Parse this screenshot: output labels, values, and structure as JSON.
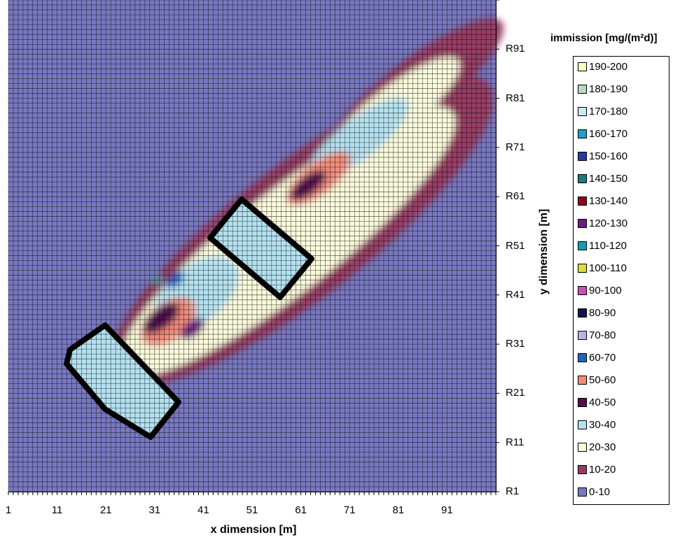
{
  "chart_data": {
    "type": "heatmap",
    "xlabel": "x dimension [m]",
    "ylabel": "y dimension [m]",
    "x_ticks": [
      "1",
      "11",
      "21",
      "31",
      "41",
      "51",
      "61",
      "71",
      "81",
      "91"
    ],
    "y_ticks": [
      "R91",
      "R81",
      "R71",
      "R61",
      "R51",
      "R41",
      "R31",
      "R21",
      "R11",
      "R1"
    ],
    "x_range": [
      1,
      100
    ],
    "y_range": [
      1,
      100
    ],
    "grid": true,
    "legend_title": "immission [mg/(m²d)]",
    "legend_position": "right",
    "legend": [
      {
        "label": "190-200",
        "color": "#ffffc8"
      },
      {
        "label": "180-190",
        "color": "#b4dcbe"
      },
      {
        "label": "170-180",
        "color": "#c8ebf5"
      },
      {
        "label": "160-170",
        "color": "#1ea0c8"
      },
      {
        "label": "150-160",
        "color": "#283ca0"
      },
      {
        "label": "140-150",
        "color": "#1e7878"
      },
      {
        "label": "130-140",
        "color": "#8c0a14"
      },
      {
        "label": "120-130",
        "color": "#6e1e82"
      },
      {
        "label": "110-120",
        "color": "#14a0b4"
      },
      {
        "label": "100-110",
        "color": "#dcdc3c"
      },
      {
        "label": "90-100",
        "color": "#c850b4"
      },
      {
        "label": "80-90",
        "color": "#141450"
      },
      {
        "label": "70-80",
        "color": "#b4b4eb"
      },
      {
        "label": "60-70",
        "color": "#1e64c8"
      },
      {
        "label": "50-60",
        "color": "#f08c7d"
      },
      {
        "label": "40-50",
        "color": "#501050"
      },
      {
        "label": "30-40",
        "color": "#b4e1f0"
      },
      {
        "label": "20-30",
        "color": "#fafadc"
      },
      {
        "label": "10-20",
        "color": "#963c64"
      },
      {
        "label": "0-10",
        "color": "#7878c0"
      }
    ],
    "background_class": "0-10",
    "outline_color": "#000000"
  }
}
